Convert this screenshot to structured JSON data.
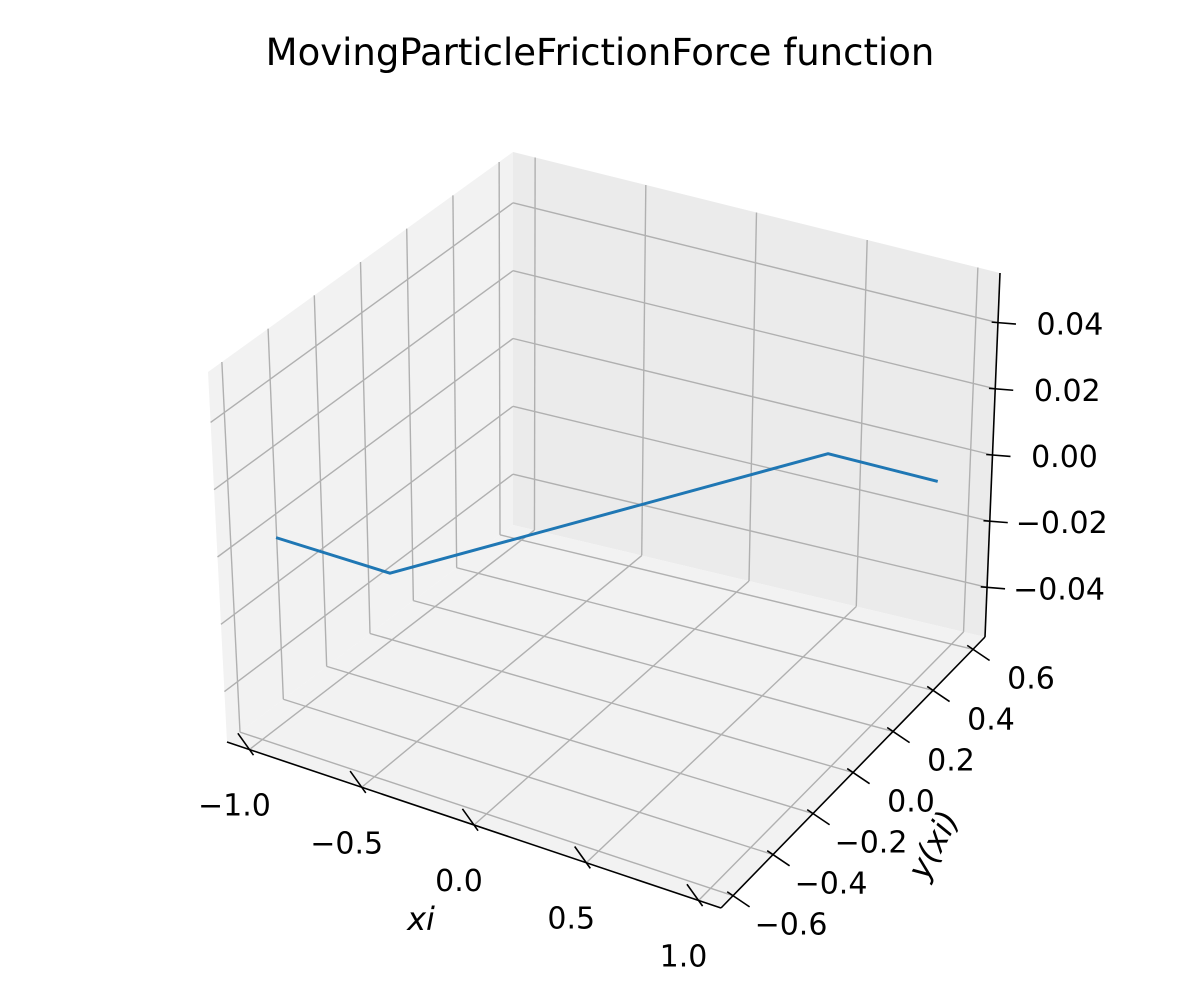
{
  "chart_data": {
    "type": "line",
    "projection": "3d",
    "title": "MovingParticleFrictionForce function",
    "xlabel": "xi",
    "ylabel": "y(xi)",
    "zlabel": "",
    "xlim": [
      -1.1,
      1.1
    ],
    "ylim": [
      -0.66,
      0.66
    ],
    "zlim": [
      -0.055,
      0.055
    ],
    "x_ticks": [
      -1.0,
      -0.5,
      0.0,
      0.5,
      1.0
    ],
    "x_tick_labels": [
      "−1.0",
      "−0.5",
      "0.0",
      "0.5",
      "1.0"
    ],
    "y_ticks": [
      -0.6,
      -0.4,
      -0.2,
      0.0,
      0.2,
      0.4,
      0.6
    ],
    "y_tick_labels": [
      "−0.6",
      "−0.4",
      "−0.2",
      "0.0",
      "0.2",
      "0.4",
      "0.6"
    ],
    "z_ticks": [
      -0.04,
      -0.02,
      0.0,
      0.02,
      0.04
    ],
    "z_tick_labels": [
      "−0.04",
      "−0.02",
      "0.00",
      "0.02",
      "0.04"
    ],
    "grid": true,
    "series": [
      {
        "color": "#1f77b4",
        "x": [
          -1.0,
          -0.5,
          0.5,
          1.0
        ],
        "y": [
          -0.5,
          -0.5,
          0.5,
          0.5
        ],
        "z": [
          0.0,
          0.0,
          0.0,
          0.0
        ]
      }
    ]
  }
}
